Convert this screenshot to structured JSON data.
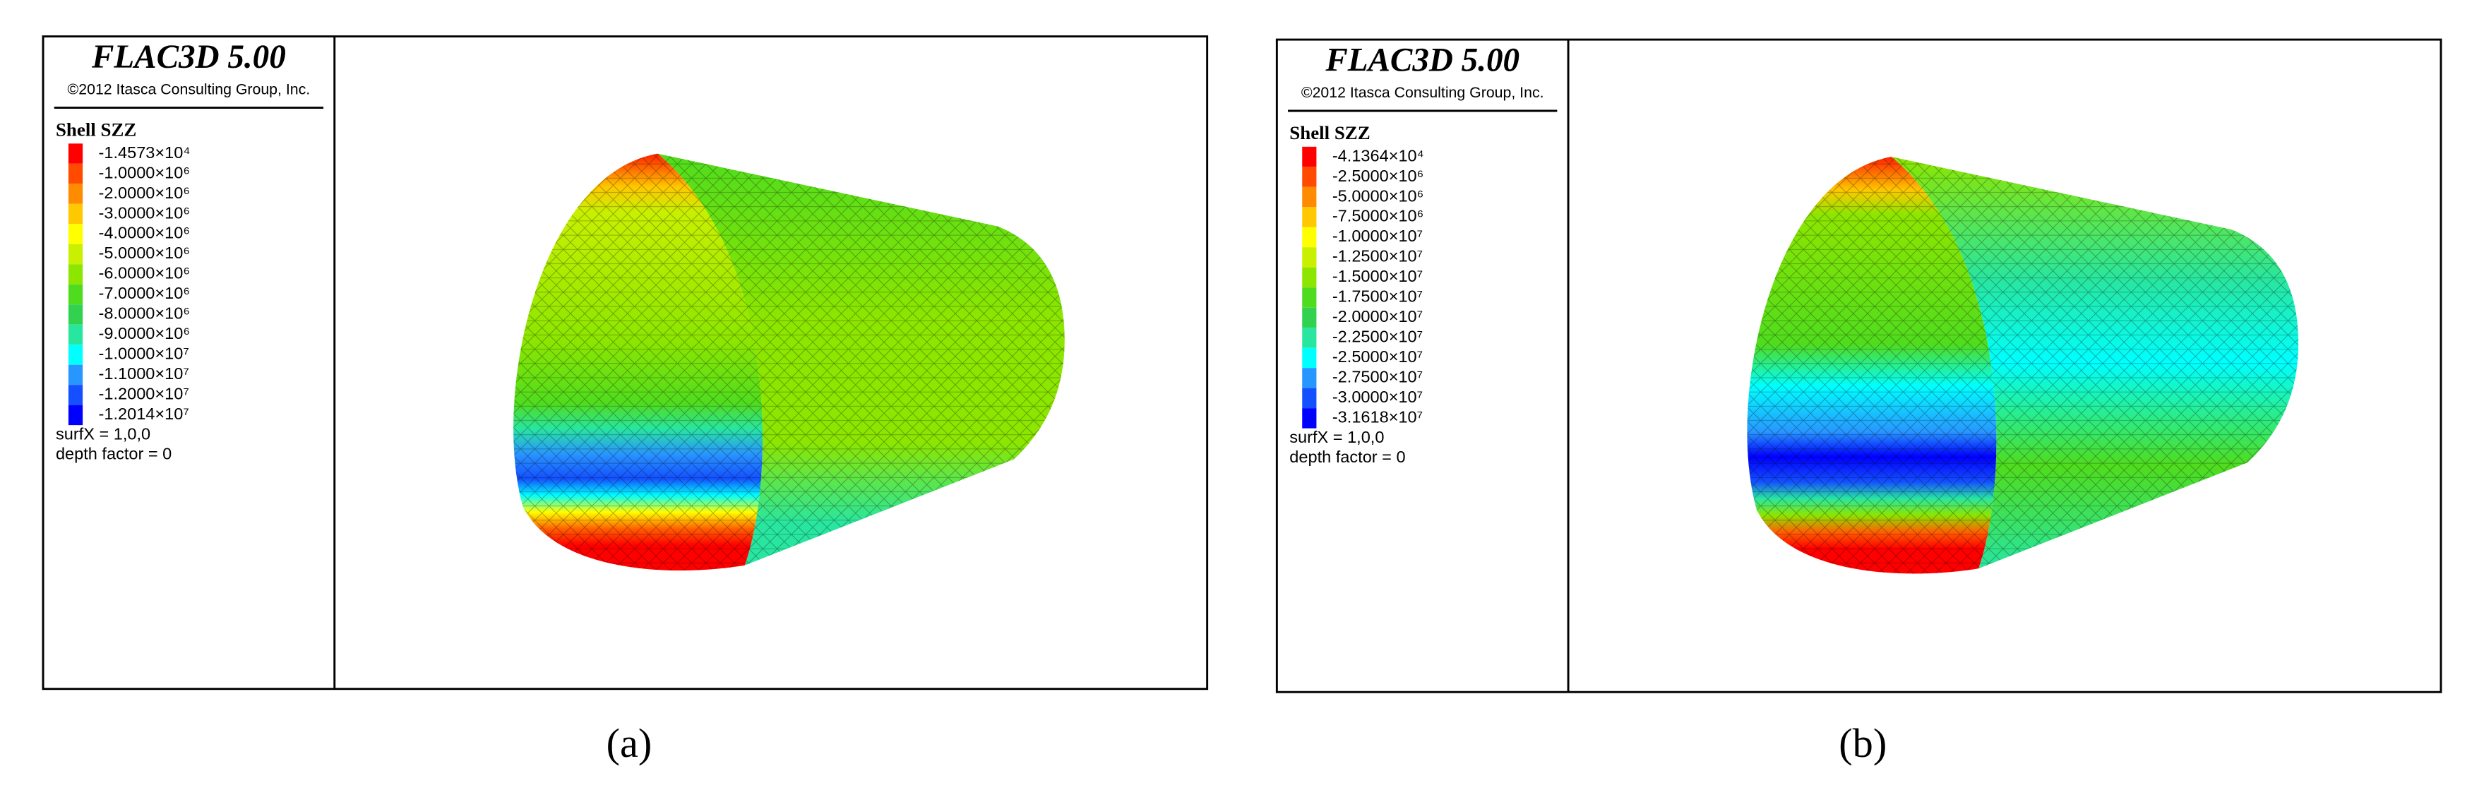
{
  "panels": [
    {
      "title": "FLAC3D 5.00",
      "copyright": "©2012 Itasca Consulting Group, Inc.",
      "legend_title": "Shell SZZ",
      "legend": [
        {
          "label": "-1.4573×10⁴",
          "color": "#ff0000"
        },
        {
          "label": "-1.0000×10⁶",
          "color": "#ff4a00"
        },
        {
          "label": "-2.0000×10⁶",
          "color": "#ff8c00"
        },
        {
          "label": "-3.0000×10⁶",
          "color": "#ffc800"
        },
        {
          "label": "-4.0000×10⁶",
          "color": "#ffff00"
        },
        {
          "label": "-5.0000×10⁶",
          "color": "#c8f000"
        },
        {
          "label": "-6.0000×10⁶",
          "color": "#8ce600"
        },
        {
          "label": "-7.0000×10⁶",
          "color": "#50dc1e"
        },
        {
          "label": "-8.0000×10⁶",
          "color": "#32d250"
        },
        {
          "label": "-9.0000×10⁶",
          "color": "#28e6a0"
        },
        {
          "label": "-1.0000×10⁷",
          "color": "#00ffff"
        },
        {
          "label": "-1.1000×10⁷",
          "color": "#2896ff"
        },
        {
          "label": "-1.2000×10⁷",
          "color": "#1450ff"
        },
        {
          "label": "-1.2014×10⁷",
          "color": "#0000ff"
        }
      ],
      "surf": "surfX = 1,0,0",
      "depth": "depth factor = 0",
      "caption": "(a)"
    },
    {
      "title": "FLAC3D 5.00",
      "copyright": "©2012 Itasca Consulting Group, Inc.",
      "legend_title": "Shell SZZ",
      "legend": [
        {
          "label": "-4.1364×10⁴",
          "color": "#ff0000"
        },
        {
          "label": "-2.5000×10⁶",
          "color": "#ff4a00"
        },
        {
          "label": "-5.0000×10⁶",
          "color": "#ff8c00"
        },
        {
          "label": "-7.5000×10⁶",
          "color": "#ffc800"
        },
        {
          "label": "-1.0000×10⁷",
          "color": "#ffff00"
        },
        {
          "label": "-1.2500×10⁷",
          "color": "#c8f000"
        },
        {
          "label": "-1.5000×10⁷",
          "color": "#8ce600"
        },
        {
          "label": "-1.7500×10⁷",
          "color": "#50dc1e"
        },
        {
          "label": "-2.0000×10⁷",
          "color": "#32d250"
        },
        {
          "label": "-2.2500×10⁷",
          "color": "#28e6a0"
        },
        {
          "label": "-2.5000×10⁷",
          "color": "#00ffff"
        },
        {
          "label": "-2.7500×10⁷",
          "color": "#2896ff"
        },
        {
          "label": "-3.0000×10⁷",
          "color": "#1450ff"
        },
        {
          "label": "-3.1618×10⁷",
          "color": "#0000ff"
        }
      ],
      "surf": "surfX = 1,0,0",
      "depth": "depth factor = 0",
      "caption": "(b)"
    }
  ]
}
